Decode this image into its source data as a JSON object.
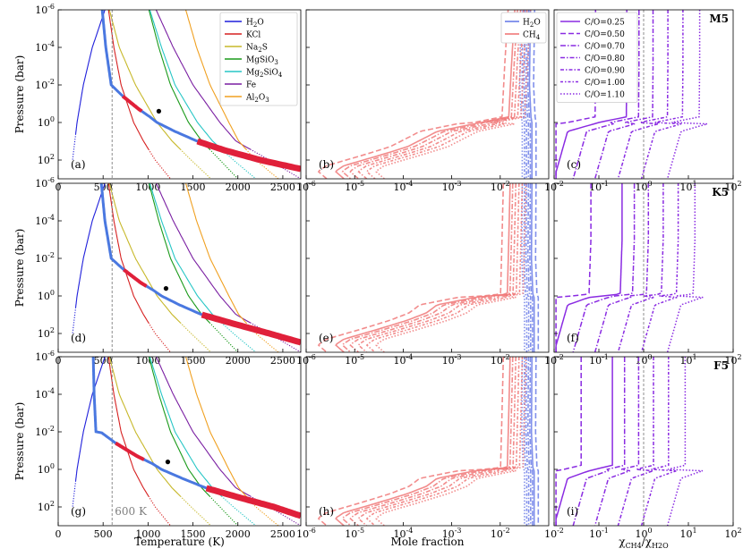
{
  "chart_data": {
    "type": "line",
    "figure_title": "Temperature-pressure profiles, mole fractions and CH4/H2O ratios for M5, K5 and F5 hosts",
    "common": {
      "ylabel": "Pressure (bar)",
      "yscale": "log",
      "ylim": [
        1e-06,
        1000.0
      ],
      "yticks": [
        1e-06,
        0.0001,
        0.01,
        1.0,
        100.0
      ],
      "yticklabels_base": "10",
      "yticklabels_exp": [
        "-6",
        "-4",
        "-2",
        "0",
        "2"
      ],
      "colors": {
        "H2O": "#1f1fdb",
        "KCl": "#d62020",
        "Na2S": "#c7b82a",
        "MgSiO3": "#1a9a1a",
        "Mg2SiO4": "#26c6c6",
        "Fe": "#7a1fa2",
        "Al2O3": "#f0a020",
        "profile": "#4a78e0",
        "profile_hot": "#e0203a",
        "water": "#6b7de8",
        "methane": "#f07878",
        "co_ratio": "#8a2be2",
        "dashed_ref": "#808080"
      }
    },
    "columns": [
      {
        "id": "temperature",
        "xlabel": "Temperature (K)",
        "xscale": "linear",
        "xlim": [
          0,
          2700
        ],
        "xticks": [
          0,
          500,
          1000,
          1500,
          2000,
          2500
        ],
        "xticklabels": [
          "0",
          "500",
          "1000",
          "1500",
          "2000",
          "2500"
        ],
        "reference_line": {
          "x": 600,
          "label": "600 K"
        },
        "legend": {
          "placement": "top-right",
          "entries": [
            {
              "base": "H",
              "sub": "2",
              "rest": "O",
              "color_key": "H2O"
            },
            {
              "base": "KCl",
              "sub": "",
              "rest": "",
              "color_key": "KCl"
            },
            {
              "base": "Na",
              "sub": "2",
              "rest": "S",
              "color_key": "Na2S"
            },
            {
              "base": "MgSiO",
              "sub": "3",
              "rest": "",
              "color_key": "MgSiO3"
            },
            {
              "base": "Mg",
              "sub": "2",
              "rest": "SiO",
              "sub2": "4",
              "color_key": "Mg2SiO4"
            },
            {
              "base": "Fe",
              "sub": "",
              "rest": "",
              "color_key": "Fe"
            },
            {
              "base": "Al",
              "sub": "2",
              "rest": "O",
              "sub2": "3",
              "color_key": "Al2O3"
            }
          ]
        },
        "condensation_curves": {
          "H2O": [
            [
              1e-06,
              520
            ],
            [
              0.0001,
              380
            ],
            [
              0.01,
              280
            ],
            [
              1,
              210
            ],
            [
              10,
              185
            ],
            [
              100,
              160
            ]
          ],
          "KCl": [
            [
              1e-06,
              560
            ],
            [
              0.0001,
              620
            ],
            [
              0.01,
              700
            ],
            [
              1,
              840
            ],
            [
              10,
              950
            ],
            [
              100,
              1080
            ],
            [
              1000,
              1250
            ]
          ],
          "Na2S": [
            [
              1e-06,
              570
            ],
            [
              0.0001,
              680
            ],
            [
              0.01,
              860
            ],
            [
              1,
              1100
            ],
            [
              10,
              1270
            ],
            [
              100,
              1480
            ],
            [
              1000,
              1700
            ]
          ],
          "MgSiO3": [
            [
              1e-06,
              1010
            ],
            [
              0.0001,
              1120
            ],
            [
              0.01,
              1250
            ],
            [
              1,
              1450
            ],
            [
              10,
              1600
            ],
            [
              100,
              1800
            ],
            [
              1000,
              2000
            ]
          ],
          "Mg2SiO4": [
            [
              1e-06,
              1020
            ],
            [
              0.0001,
              1150
            ],
            [
              0.01,
              1300
            ],
            [
              1,
              1550
            ],
            [
              10,
              1720
            ],
            [
              100,
              1950
            ],
            [
              1000,
              2200
            ]
          ],
          "Fe": [
            [
              1e-06,
              1090
            ],
            [
              0.0001,
              1280
            ],
            [
              0.01,
              1500
            ],
            [
              1,
              1800
            ],
            [
              10,
              1980
            ],
            [
              100,
              2350
            ],
            [
              1000,
              2700
            ]
          ],
          "Al2O3": [
            [
              1e-06,
              1420
            ],
            [
              0.0001,
              1540
            ],
            [
              0.01,
              1690
            ],
            [
              1,
              1900
            ],
            [
              10,
              2010
            ],
            [
              100,
              2200
            ],
            [
              1000,
              2450
            ]
          ]
        }
      },
      {
        "id": "mole_fraction",
        "xlabel": "Mole fraction",
        "xscale": "log",
        "xlim": [
          1e-06,
          0.1
        ],
        "xticks": [
          1e-06,
          1e-05,
          0.0001,
          0.001,
          0.01
        ],
        "xticklabels_exp": [
          "-6",
          "-5",
          "-4",
          "-3",
          "-2"
        ],
        "legend": {
          "placement": "top-right",
          "entries": [
            {
              "base": "H",
              "sub": "2",
              "rest": "O",
              "color_key": "water"
            },
            {
              "base": "CH",
              "sub": "4",
              "rest": "",
              "color_key": "methane"
            }
          ]
        }
      },
      {
        "id": "ratio",
        "xlabel_parts": {
          "chi": "χ",
          "sub1": "CH4",
          "slash": "/",
          "sub2": "H2O"
        },
        "xscale": "log",
        "xlim": [
          0.01,
          100.0
        ],
        "xticks": [
          0.01,
          0.1,
          1.0,
          10.0,
          100.0
        ],
        "xticklabels_exp": [
          "-2",
          "-1",
          "0",
          "1",
          "2"
        ],
        "reference_line": {
          "x": 1
        },
        "legend": {
          "placement": "top-left",
          "entries": [
            {
              "label": "C/O=0.25",
              "dash": "solid"
            },
            {
              "label": "C/O=0.50",
              "dash": "dashed"
            },
            {
              "label": "C/O=0.70",
              "dash": "dashdot"
            },
            {
              "label": "C/O=0.80",
              "dash": "dashdot2"
            },
            {
              "label": "C/O=0.90",
              "dash": "dashdot3"
            },
            {
              "label": "C/O=1.00",
              "dash": "dashdot4"
            },
            {
              "label": "C/O=1.10",
              "dash": "dotted"
            }
          ]
        }
      }
    ],
    "rows": [
      {
        "star": "M5",
        "panel_labels": [
          "(a)",
          "(b)",
          "(c)"
        ],
        "tp_profile": [
          [
            1e-06,
            490
          ],
          [
            0.0001,
            530
          ],
          [
            0.01,
            590
          ],
          [
            0.04,
            720
          ],
          [
            0.2,
            900
          ],
          [
            0.5,
            1020
          ],
          [
            1,
            1100
          ],
          [
            3,
            1300
          ],
          [
            10,
            1550
          ],
          [
            30,
            1850
          ],
          [
            100,
            2250
          ],
          [
            300,
            2700
          ]
        ],
        "tp_hot_segments": [
          [
            0.04,
            0.25
          ],
          [
            10,
            300
          ]
        ],
        "tp_marker": {
          "pressure": 0.25,
          "temperature": 1120
        },
        "ch4_solid": [
          [
            1e-06,
            0.02
          ],
          [
            0.001,
            0.017
          ],
          [
            0.5,
            0.015
          ],
          [
            1,
            0.004
          ],
          [
            3,
            0.0005
          ],
          [
            6,
            0.0003
          ],
          [
            20,
            0.00012
          ],
          [
            60,
            3e-05
          ],
          [
            200,
            6e-06
          ],
          [
            400,
            4e-06
          ],
          [
            1000,
            6e-06
          ]
        ],
        "h2o_solid": [
          [
            1e-06,
            0.042
          ],
          [
            0.01,
            0.04
          ],
          [
            0.5,
            0.043
          ],
          [
            1,
            0.045
          ],
          [
            1000,
            0.045
          ]
        ],
        "ratio_solid": [
          [
            1e-06,
            0.42
          ],
          [
            0.001,
            0.42
          ],
          [
            0.5,
            0.41
          ],
          [
            1,
            0.1
          ],
          [
            3,
            0.02
          ],
          [
            1000,
            0.01
          ]
        ]
      },
      {
        "star": "K5",
        "panel_labels": [
          "(d)",
          "(e)",
          "(f)"
        ],
        "tp_profile": [
          [
            1e-06,
            480
          ],
          [
            0.0001,
            520
          ],
          [
            0.01,
            590
          ],
          [
            0.04,
            730
          ],
          [
            0.2,
            920
          ],
          [
            0.5,
            1060
          ],
          [
            1,
            1150
          ],
          [
            3,
            1350
          ],
          [
            10,
            1600
          ],
          [
            30,
            1950
          ],
          [
            100,
            2350
          ],
          [
            300,
            2700
          ]
        ],
        "tp_hot_segments": [
          [
            0.04,
            0.3
          ],
          [
            10,
            300
          ]
        ],
        "tp_marker": {
          "pressure": 0.4,
          "temperature": 1200
        },
        "ch4_solid": [
          [
            1e-06,
            0.016
          ],
          [
            0.001,
            0.015
          ],
          [
            0.8,
            0.014
          ],
          [
            1.2,
            0.003
          ],
          [
            3,
            0.0005
          ],
          [
            8,
            0.0003
          ],
          [
            20,
            0.00012
          ],
          [
            60,
            3e-05
          ],
          [
            200,
            6e-06
          ],
          [
            400,
            4e-06
          ],
          [
            1000,
            6e-06
          ]
        ],
        "h2o_solid": [
          [
            1e-06,
            0.045
          ],
          [
            0.01,
            0.044
          ],
          [
            0.8,
            0.047
          ],
          [
            1.2,
            0.05
          ],
          [
            1000,
            0.05
          ]
        ],
        "ratio_solid": [
          [
            1e-06,
            0.33
          ],
          [
            0.001,
            0.33
          ],
          [
            0.8,
            0.3
          ],
          [
            1.2,
            0.06
          ],
          [
            3,
            0.02
          ],
          [
            1000,
            0.01
          ]
        ]
      },
      {
        "star": "F5",
        "panel_labels": [
          "(g)",
          "(h)",
          "(i)"
        ],
        "tp_profile": [
          [
            1e-06,
            390
          ],
          [
            0.0001,
            400
          ],
          [
            0.01,
            420
          ],
          [
            0.01,
            470
          ],
          [
            0.04,
            640
          ],
          [
            0.2,
            880
          ],
          [
            0.5,
            1050
          ],
          [
            1,
            1150
          ],
          [
            3,
            1380
          ],
          [
            10,
            1650
          ],
          [
            30,
            2000
          ],
          [
            100,
            2400
          ],
          [
            300,
            2700
          ]
        ],
        "tp_hot_segments": [
          [
            0.04,
            0.3
          ],
          [
            10,
            300
          ]
        ],
        "tp_marker": {
          "pressure": 0.4,
          "temperature": 1220
        },
        "ch4_solid": [
          [
            1e-06,
            0.016
          ],
          [
            0.001,
            0.015
          ],
          [
            0.8,
            0.014
          ],
          [
            1.2,
            0.003
          ],
          [
            3,
            0.0005
          ],
          [
            8,
            0.0003
          ],
          [
            20,
            0.00012
          ],
          [
            60,
            3e-05
          ],
          [
            200,
            6e-06
          ],
          [
            400,
            4e-06
          ],
          [
            1000,
            6e-06
          ]
        ],
        "h2o_solid": [
          [
            1e-06,
            0.045
          ],
          [
            0.01,
            0.044
          ],
          [
            0.8,
            0.047
          ],
          [
            1.2,
            0.05
          ],
          [
            1000,
            0.05
          ]
        ],
        "ratio_solid": [
          [
            1e-06,
            0.2
          ],
          [
            0.001,
            0.2
          ],
          [
            0.6,
            0.2
          ],
          [
            1.2,
            0.06
          ],
          [
            3,
            0.02
          ],
          [
            1000,
            0.01
          ]
        ]
      }
    ]
  }
}
